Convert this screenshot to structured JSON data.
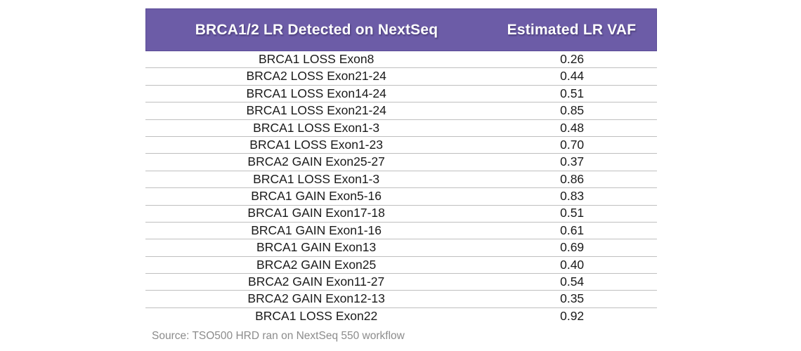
{
  "chart_data": {
    "type": "table",
    "columns": [
      "BRCA1/2 LR Detected on NextSeq",
      "Estimated LR VAF"
    ],
    "rows": [
      [
        "BRCA1 LOSS Exon8",
        "0.26"
      ],
      [
        "BRCA2 LOSS Exon21-24",
        "0.44"
      ],
      [
        "BRCA1 LOSS Exon14-24",
        "0.51"
      ],
      [
        "BRCA1 LOSS Exon21-24",
        "0.85"
      ],
      [
        "BRCA1 LOSS Exon1-3",
        "0.48"
      ],
      [
        "BRCA1 LOSS Exon1-23",
        "0.70"
      ],
      [
        "BRCA2 GAIN Exon25-27",
        "0.37"
      ],
      [
        "BRCA1 LOSS Exon1-3",
        "0.86"
      ],
      [
        "BRCA1 GAIN Exon5-16",
        "0.83"
      ],
      [
        "BRCA1 GAIN Exon17-18",
        "0.51"
      ],
      [
        "BRCA1 GAIN Exon1-16",
        "0.61"
      ],
      [
        "BRCA1 GAIN Exon13",
        "0.69"
      ],
      [
        "BRCA2 GAIN Exon25",
        "0.40"
      ],
      [
        "BRCA2 GAIN Exon11-27",
        "0.54"
      ],
      [
        "BRCA2 GAIN Exon12-13",
        "0.35"
      ],
      [
        "BRCA1 LOSS Exon22",
        "0.92"
      ]
    ],
    "source_note": "Source: TSO500 HRD ran on NextSeq 550 workflow"
  },
  "colors": {
    "header_bg": "#6C5CA7",
    "header_border": "#5B4C97",
    "header_text": "#FFFFFF",
    "row_divider": "#BFBFBF",
    "row_text": "#1A1A1A",
    "source_text": "#8C8C8C"
  }
}
